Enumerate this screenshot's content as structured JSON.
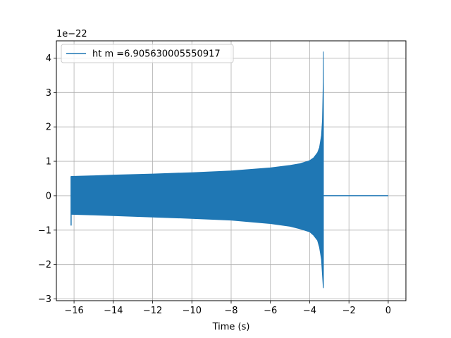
{
  "chart_data": {
    "type": "line",
    "title": "",
    "xlabel": "Time (s)",
    "ylabel": "",
    "offset_label": "1e−22",
    "xlim": [
      -16.9,
      0.9
    ],
    "ylim": [
      -3.05,
      4.5
    ],
    "x_ticks": [
      -16,
      -14,
      -12,
      -10,
      -8,
      -6,
      -4,
      -2,
      0
    ],
    "x_tick_labels": [
      "−16",
      "−14",
      "−12",
      "−10",
      "−8",
      "−6",
      "−4",
      "−2",
      "0"
    ],
    "y_ticks": [
      -3,
      -2,
      -1,
      0,
      1,
      2,
      3,
      4
    ],
    "y_tick_labels": [
      "−3",
      "−2",
      "−1",
      "0",
      "1",
      "2",
      "3",
      "4"
    ],
    "grid": true,
    "legend_position": "top-left",
    "series": [
      {
        "name": "ht m =6.905630005550917",
        "color": "#1f77b4",
        "envelope": {
          "x": [
            -16.15,
            -15,
            -14,
            -12,
            -10,
            -8,
            -6,
            -5,
            -4.5,
            -4,
            -3.8,
            -3.6,
            -3.5,
            -3.4,
            -3.35,
            -3.31,
            -3.3
          ],
          "upper": [
            0.56,
            0.58,
            0.6,
            0.63,
            0.67,
            0.72,
            0.81,
            0.88,
            0.93,
            1.02,
            1.1,
            1.25,
            1.4,
            1.75,
            2.2,
            3.3,
            4.18
          ],
          "lower": [
            -0.54,
            -0.56,
            -0.58,
            -0.62,
            -0.66,
            -0.71,
            -0.81,
            -0.89,
            -0.96,
            -1.05,
            -1.15,
            -1.3,
            -1.5,
            -1.85,
            -2.3,
            -2.65,
            -2.68
          ]
        },
        "flat_segment": {
          "x_start": -3.28,
          "x_end": 0,
          "value": 0
        }
      }
    ]
  }
}
